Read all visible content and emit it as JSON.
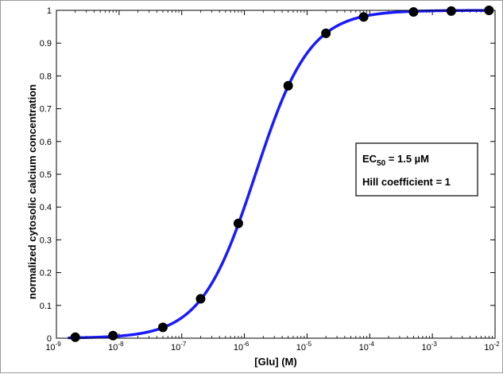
{
  "chart_data": {
    "type": "scatter",
    "xscale": "log",
    "xlabel": "[Glu] (M)",
    "ylabel": "normalized cytosolic calcium concentration",
    "xlim": [
      1e-09,
      0.01
    ],
    "ylim": [
      0,
      1
    ],
    "x_ticks": [
      {
        "base": "10",
        "exp": "-9"
      },
      {
        "base": "10",
        "exp": "-8"
      },
      {
        "base": "10",
        "exp": "-7"
      },
      {
        "base": "10",
        "exp": "-6"
      },
      {
        "base": "10",
        "exp": "-5"
      },
      {
        "base": "10",
        "exp": "-4"
      },
      {
        "base": "10",
        "exp": "-3"
      },
      {
        "base": "10",
        "exp": "-2"
      }
    ],
    "y_ticks": [
      "0",
      "0.1",
      "0.2",
      "0.3",
      "0.4",
      "0.5",
      "0.6",
      "0.7",
      "0.8",
      "0.9",
      "1"
    ],
    "series": [
      {
        "kind": "markers",
        "color": "#000000",
        "points": [
          {
            "x": 2e-09,
            "y": 0.003
          },
          {
            "x": 8e-09,
            "y": 0.008
          },
          {
            "x": 5e-08,
            "y": 0.033
          },
          {
            "x": 2e-07,
            "y": 0.12
          },
          {
            "x": 8e-07,
            "y": 0.35
          },
          {
            "x": 5e-06,
            "y": 0.77
          },
          {
            "x": 2e-05,
            "y": 0.93
          },
          {
            "x": 8e-05,
            "y": 0.98
          },
          {
            "x": 0.0005,
            "y": 0.995
          },
          {
            "x": 0.002,
            "y": 0.998
          },
          {
            "x": 0.008,
            "y": 1.0
          }
        ]
      },
      {
        "kind": "fit-curve",
        "color": "#1a1aff",
        "ec50": 1.5e-06,
        "hill": 1
      }
    ],
    "annotation": {
      "line1_prefix": "EC",
      "line1_sub": "50",
      "line1_suffix": " = 1.5 µM",
      "line2": "Hill coefficient = 1"
    },
    "grid": false
  }
}
